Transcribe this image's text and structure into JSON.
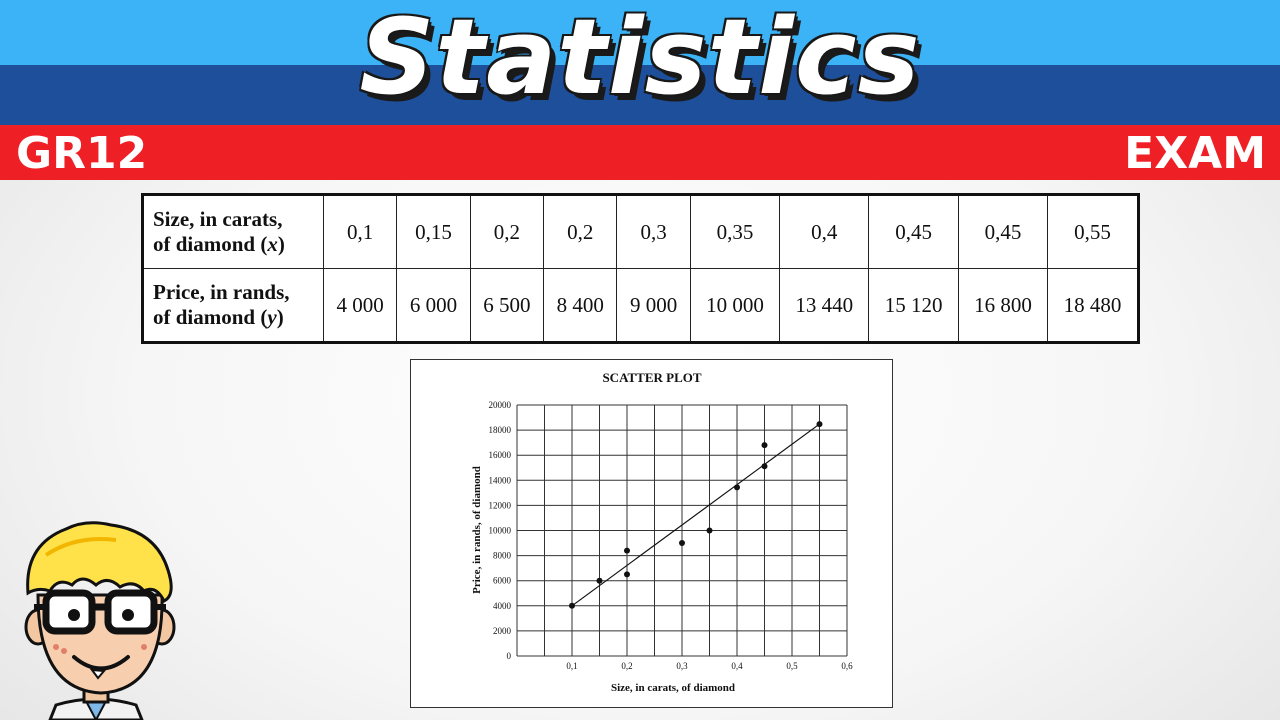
{
  "header": {
    "title": "Statistics",
    "left_tag": "GR12",
    "right_tag": "EXAM"
  },
  "table": {
    "rows": [
      {
        "label_lines": [
          "Size, in carats,",
          "of diamond"
        ],
        "var": "x",
        "values": [
          "0,1",
          "0,15",
          "0,2",
          "0,2",
          "0,3",
          "0,35",
          "0,4",
          "0,45",
          "0,45",
          "0,55"
        ]
      },
      {
        "label_lines": [
          "Price, in rands,",
          "of diamond"
        ],
        "var": "y",
        "values": [
          "4 000",
          "6 000",
          "6 500",
          "8 400",
          "9 000",
          "10 000",
          "13 440",
          "15 120",
          "16 800",
          "18 480"
        ]
      }
    ]
  },
  "chart_data": {
    "type": "scatter",
    "title": "SCATTER PLOT",
    "xlabel": "Size, in carats, of diamond",
    "ylabel": "Price, in rands, of diamond",
    "xlim": [
      0,
      0.6
    ],
    "ylim": [
      0,
      20000
    ],
    "x_ticks": [
      "0,1",
      "0,2",
      "0,3",
      "0,4",
      "0,5",
      "0,6"
    ],
    "x_tick_values": [
      0.1,
      0.2,
      0.3,
      0.4,
      0.5,
      0.6
    ],
    "y_ticks": [
      "0",
      "2000",
      "4000",
      "6000",
      "8000",
      "10000",
      "12000",
      "14000",
      "16000",
      "18000",
      "20000"
    ],
    "y_tick_values": [
      0,
      2000,
      4000,
      6000,
      8000,
      10000,
      12000,
      14000,
      16000,
      18000,
      20000
    ],
    "grid": true,
    "points": {
      "x": [
        0.1,
        0.15,
        0.2,
        0.2,
        0.3,
        0.35,
        0.4,
        0.45,
        0.45,
        0.55
      ],
      "y": [
        4000,
        6000,
        6500,
        8400,
        9000,
        10000,
        13440,
        15120,
        16800,
        18480
      ]
    },
    "trend_line": {
      "from": [
        0.1,
        4000
      ],
      "to": [
        0.55,
        18480
      ]
    }
  },
  "mascot": {
    "icon": "nerd-cartoon-character"
  }
}
